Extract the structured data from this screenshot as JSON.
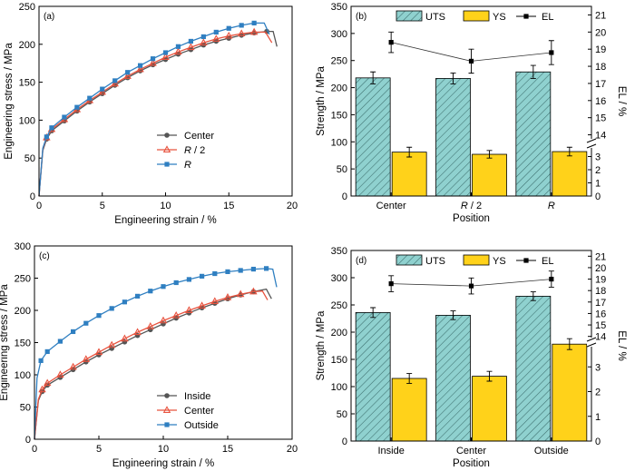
{
  "chart_data": [
    {
      "panel": "(a)",
      "type": "line",
      "xlabel": "Engineering strain / %",
      "ylabel": "Engineering stress / MPa",
      "xlim": [
        0,
        20
      ],
      "ylim": [
        0,
        250
      ],
      "xticks": [
        0,
        5,
        10,
        15,
        20
      ],
      "yticks": [
        0,
        50,
        100,
        150,
        200,
        250
      ],
      "legend": "center-right",
      "series": [
        {
          "name": "Center",
          "marker": "circle",
          "color": "#555555",
          "x": [
            0,
            0.3,
            0.6,
            1,
            2,
            3,
            4,
            5,
            6,
            7,
            8,
            9,
            10,
            11,
            12,
            13,
            14,
            15,
            16,
            17,
            18,
            18.5,
            18.8
          ],
          "y": [
            0,
            60,
            75,
            86,
            99,
            112,
            124,
            135,
            146,
            156,
            165,
            173,
            180,
            187,
            193,
            199,
            204,
            208,
            212,
            215,
            217,
            217,
            197
          ]
        },
        {
          "name": "R / 2",
          "marker": "triangle",
          "color": "#e8533f",
          "x": [
            0,
            0.3,
            0.6,
            1,
            2,
            3,
            4,
            5,
            6,
            7,
            8,
            9,
            10,
            11,
            12,
            13,
            14,
            15,
            16,
            17,
            17.9,
            18.4
          ],
          "y": [
            0,
            62,
            77,
            88,
            101,
            114,
            126,
            137,
            148,
            158,
            167,
            175,
            183,
            190,
            196,
            202,
            207,
            211,
            214,
            216,
            216,
            202
          ]
        },
        {
          "name": "R",
          "marker": "square",
          "color": "#2f7fc1",
          "x": [
            0,
            0.3,
            0.6,
            1,
            2,
            3,
            4,
            5,
            6,
            7,
            8,
            9,
            10,
            11,
            12,
            13,
            14,
            15,
            16,
            17,
            17.8,
            18.2
          ],
          "y": [
            0,
            63,
            78,
            90,
            104,
            117,
            129,
            141,
            152,
            163,
            172,
            181,
            189,
            197,
            204,
            210,
            216,
            221,
            225,
            228,
            228,
            213
          ]
        }
      ]
    },
    {
      "panel": "(b)",
      "type": "bar",
      "categories": [
        "Center",
        "R / 2",
        "R"
      ],
      "xlabel": "Position",
      "ylabel": "Strength / MPa",
      "ylim": [
        0,
        350
      ],
      "yticks": [
        0,
        50,
        100,
        150,
        200,
        250,
        300,
        350
      ],
      "y2label": "EL / %",
      "y2ticks_lower": [
        "0",
        "1",
        "2",
        "3"
      ],
      "y2ticks_upper": [
        "14",
        "15",
        "16",
        "17",
        "18",
        "19",
        "20",
        "21"
      ],
      "legend": "top",
      "series": [
        {
          "name": "UTS",
          "color": "#8fd1cf",
          "hatch": true,
          "values": [
            218,
            217,
            229
          ],
          "err": [
            11,
            10,
            12
          ]
        },
        {
          "name": "YS",
          "color": "#ffd21a",
          "values": [
            81,
            77,
            82
          ],
          "err": [
            9,
            7,
            8
          ]
        },
        {
          "name": "EL",
          "type": "line",
          "marker": "square",
          "values": [
            19.4,
            18.3,
            18.8
          ],
          "err": [
            0.6,
            0.7,
            0.7
          ]
        }
      ]
    },
    {
      "panel": "(c)",
      "type": "line",
      "xlabel": "Engineering strain / %",
      "ylabel": "Engineering stress / MPa",
      "xlim": [
        0,
        20
      ],
      "ylim": [
        0,
        300
      ],
      "xticks": [
        0,
        5,
        10,
        15,
        20
      ],
      "yticks": [
        0,
        50,
        100,
        150,
        200,
        250,
        300
      ],
      "legend": "lower-center",
      "series": [
        {
          "name": "Inside",
          "marker": "circle",
          "color": "#555555",
          "x": [
            0,
            0.3,
            0.6,
            1,
            2,
            3,
            4,
            5,
            6,
            7,
            8,
            9,
            10,
            11,
            12,
            13,
            14,
            15,
            16,
            17,
            18,
            18.4
          ],
          "y": [
            0,
            60,
            74,
            84,
            96,
            108,
            120,
            131,
            141,
            151,
            161,
            170,
            179,
            188,
            196,
            204,
            211,
            218,
            224,
            229,
            233,
            218
          ]
        },
        {
          "name": "Center",
          "marker": "triangle",
          "color": "#e8533f",
          "x": [
            0,
            0.3,
            0.6,
            1,
            2,
            3,
            4,
            5,
            6,
            7,
            8,
            9,
            10,
            11,
            12,
            13,
            14,
            15,
            16,
            17,
            17.7,
            18.1
          ],
          "y": [
            0,
            62,
            77,
            87,
            100,
            112,
            124,
            135,
            146,
            156,
            166,
            175,
            184,
            192,
            200,
            207,
            214,
            220,
            225,
            229,
            230,
            216
          ]
        },
        {
          "name": "Outside",
          "marker": "square",
          "color": "#2f7fc1",
          "x": [
            0,
            0.2,
            0.5,
            1,
            2,
            3,
            4,
            5,
            6,
            7,
            8,
            9,
            10,
            11,
            12,
            13,
            14,
            15,
            16,
            17,
            18,
            18.5,
            18.8
          ],
          "y": [
            0,
            95,
            122,
            136,
            152,
            167,
            180,
            192,
            203,
            213,
            222,
            230,
            237,
            243,
            248,
            253,
            257,
            260,
            262,
            264,
            265,
            264,
            236
          ]
        }
      ]
    },
    {
      "panel": "(d)",
      "type": "bar",
      "categories": [
        "Inside",
        "Center",
        "Outside"
      ],
      "xlabel": "Position",
      "ylabel": "Strength / MPa",
      "ylim": [
        0,
        350
      ],
      "yticks": [
        0,
        50,
        100,
        150,
        200,
        250,
        300,
        350
      ],
      "y2label": "EL / %",
      "y2ticks_lower": [
        "0",
        "1",
        "2",
        "3"
      ],
      "y2ticks_upper": [
        "14",
        "15",
        "16",
        "17",
        "18",
        "19",
        "20",
        "21"
      ],
      "legend": "top",
      "series": [
        {
          "name": "UTS",
          "color": "#8fd1cf",
          "hatch": true,
          "values": [
            236,
            231,
            266
          ],
          "err": [
            9,
            8,
            8
          ]
        },
        {
          "name": "YS",
          "color": "#ffd21a",
          "values": [
            115,
            119,
            178
          ],
          "err": [
            9,
            9,
            10
          ]
        },
        {
          "name": "EL",
          "type": "line",
          "marker": "square",
          "values": [
            18.6,
            18.4,
            19.0
          ],
          "err": [
            0.7,
            0.7,
            0.7
          ]
        }
      ]
    }
  ]
}
